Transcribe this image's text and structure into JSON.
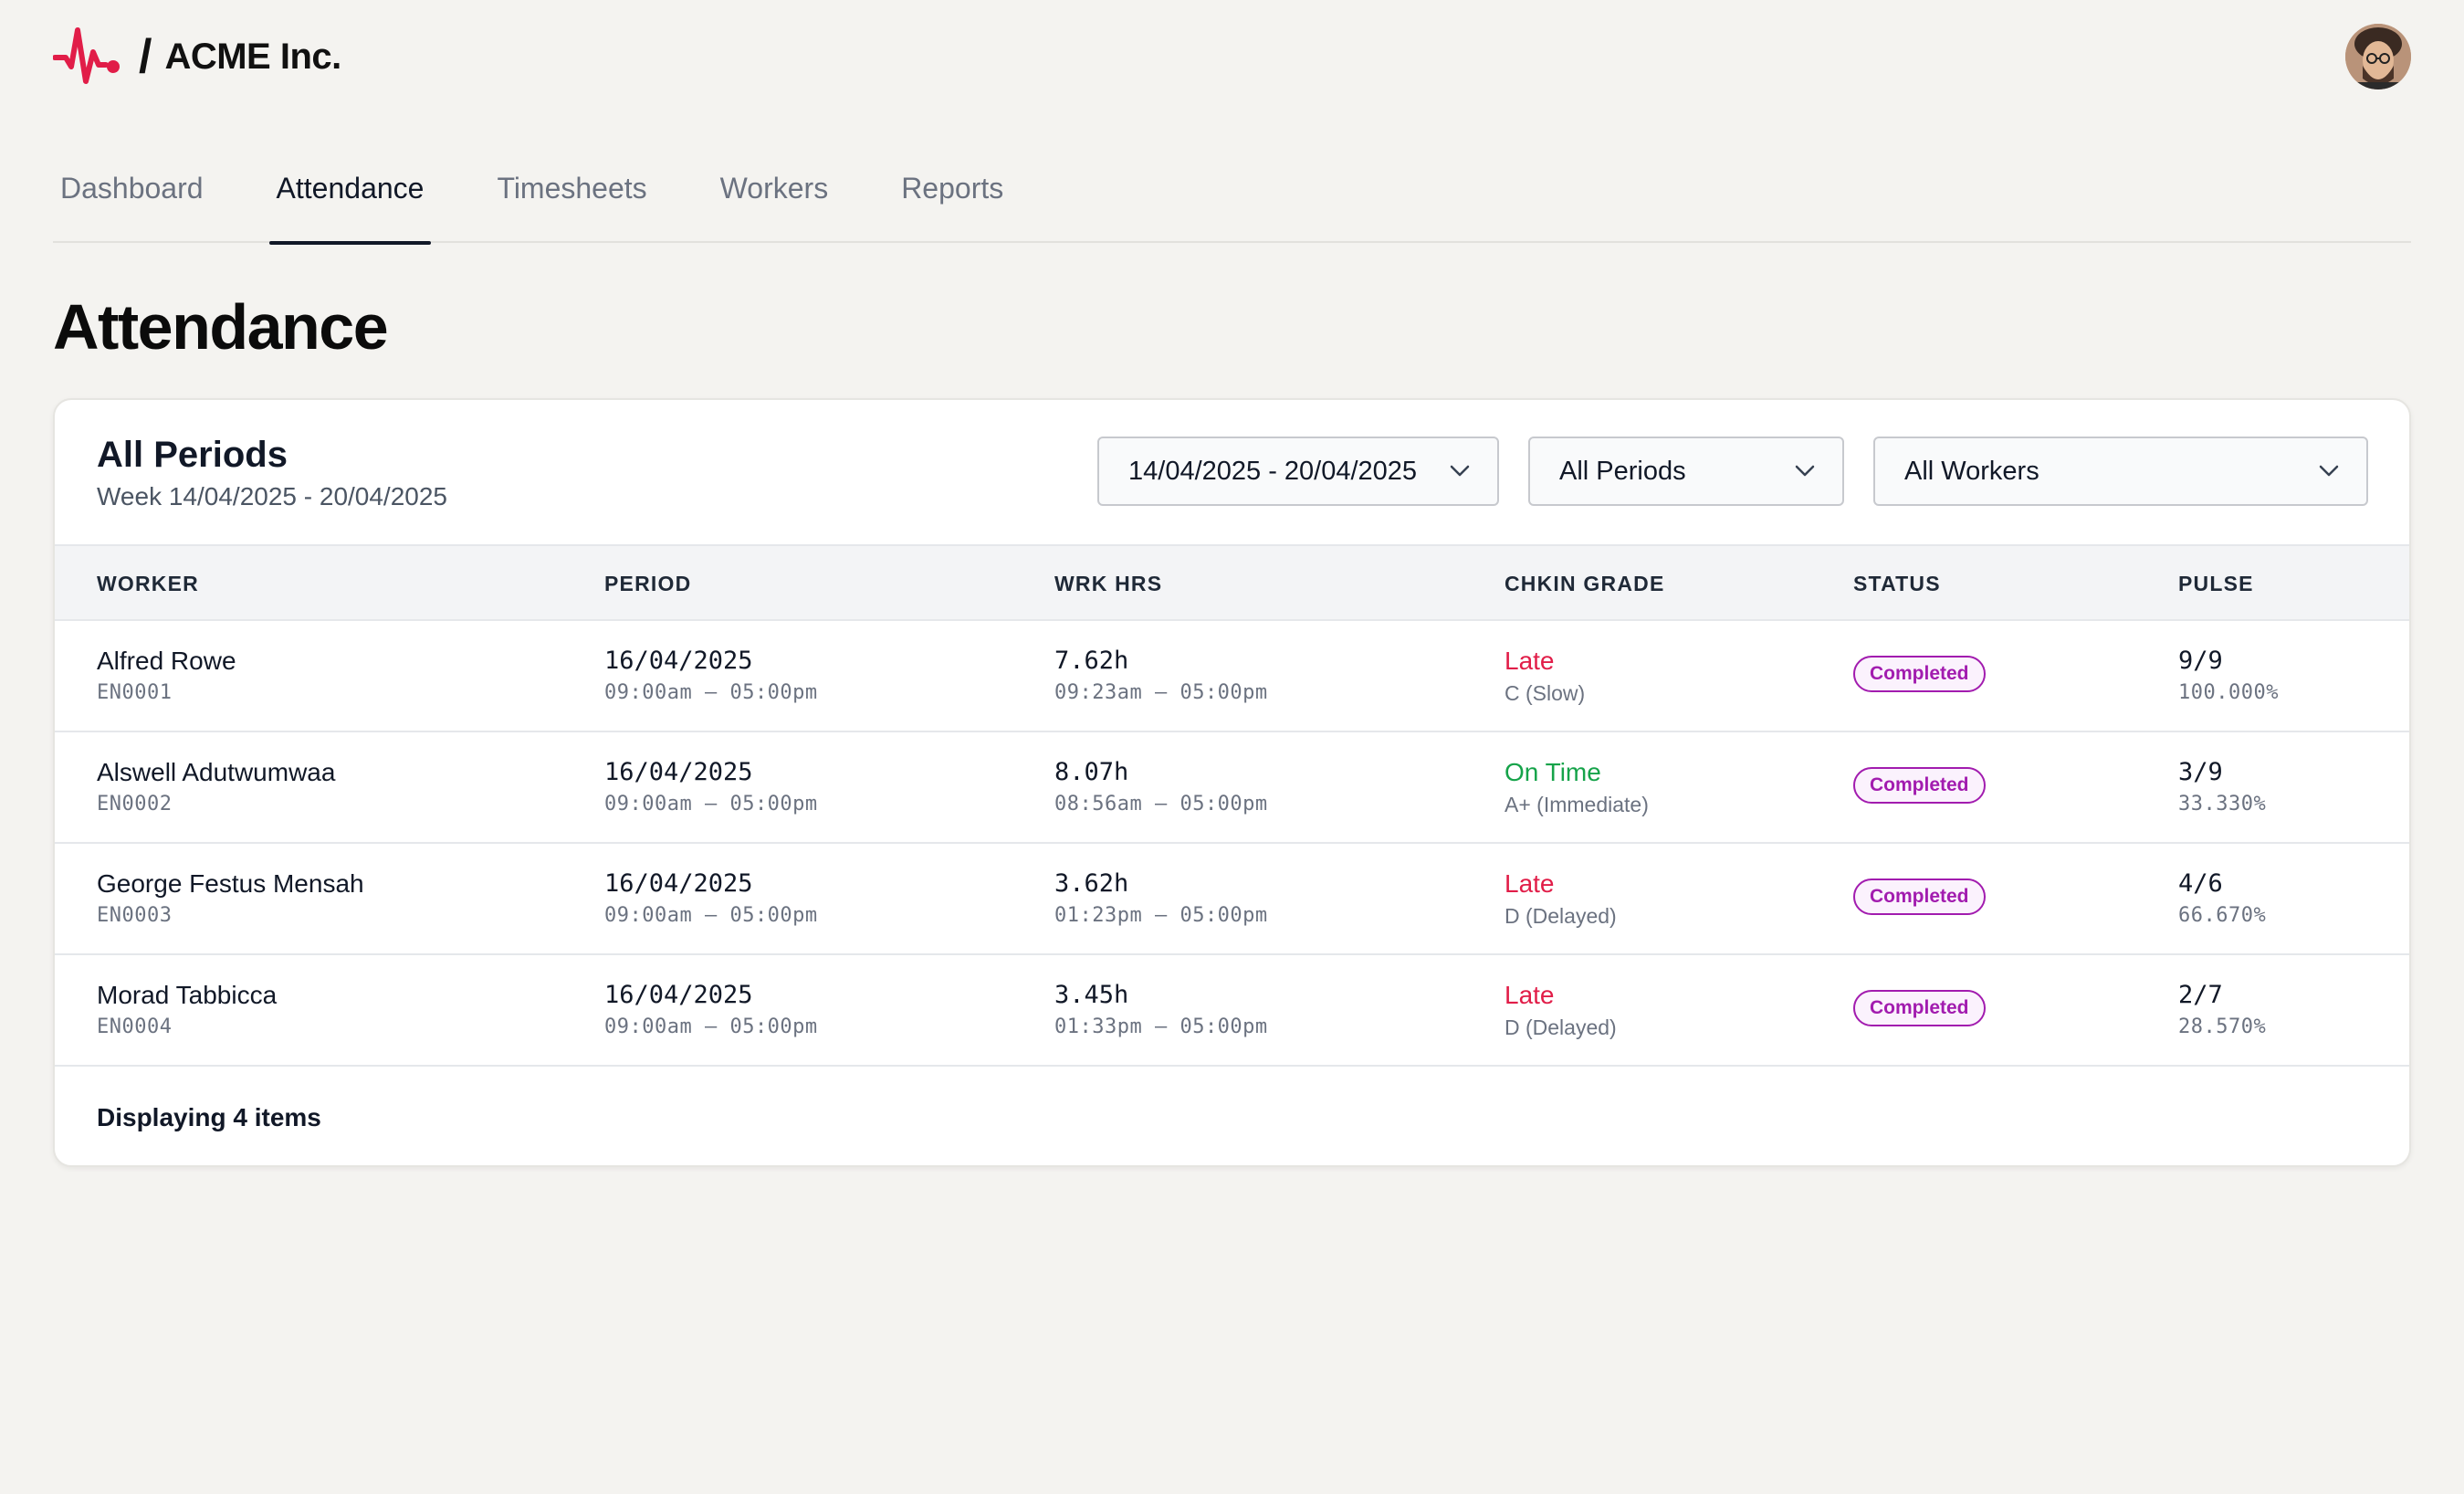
{
  "brand": {
    "name": "ACME Inc.",
    "separator": "/",
    "logo_icon": "pulse-icon",
    "accent": "#e11d48"
  },
  "user": {
    "avatar_icon": "avatar-icon"
  },
  "nav": {
    "tabs": [
      {
        "label": "Dashboard"
      },
      {
        "label": "Attendance"
      },
      {
        "label": "Timesheets"
      },
      {
        "label": "Workers"
      },
      {
        "label": "Reports"
      }
    ],
    "active": "Attendance"
  },
  "page": {
    "title": "Attendance"
  },
  "card": {
    "title": "All Periods",
    "subtitle": "Week 14/04/2025 - 20/04/2025",
    "filters": {
      "date_range": "14/04/2025 - 20/04/2025",
      "period": "All Periods",
      "workers": "All Workers"
    },
    "columns": [
      "WORKER",
      "PERIOD",
      "WRK HRS",
      "CHKIN GRADE",
      "STATUS",
      "PULSE"
    ],
    "rows": [
      {
        "worker": "Alfred Rowe",
        "id": "EN0001",
        "date": "16/04/2025",
        "period": "09:00am – 05:00pm",
        "hours": "7.62h",
        "hours_range": "09:23am – 05:00pm",
        "grade": "Late",
        "grade_detail": "C (Slow)",
        "grade_color": "#e11d48",
        "status": "Completed",
        "pulse": "9/9",
        "pulse_pct": "100.000%"
      },
      {
        "worker": "Alswell Adutwumwaa",
        "id": "EN0002",
        "date": "16/04/2025",
        "period": "09:00am – 05:00pm",
        "hours": "8.07h",
        "hours_range": "08:56am – 05:00pm",
        "grade": "On Time",
        "grade_detail": "A+ (Immediate)",
        "grade_color": "#16a34a",
        "status": "Completed",
        "pulse": "3/9",
        "pulse_pct": "33.330%"
      },
      {
        "worker": "George Festus Mensah",
        "id": "EN0003",
        "date": "16/04/2025",
        "period": "09:00am – 05:00pm",
        "hours": "3.62h",
        "hours_range": "01:23pm – 05:00pm",
        "grade": "Late",
        "grade_detail": "D (Delayed)",
        "grade_color": "#e11d48",
        "status": "Completed",
        "pulse": "4/6",
        "pulse_pct": "66.670%"
      },
      {
        "worker": "Morad Tabbicca",
        "id": "EN0004",
        "date": "16/04/2025",
        "period": "09:00am – 05:00pm",
        "hours": "3.45h",
        "hours_range": "01:33pm – 05:00pm",
        "grade": "Late",
        "grade_detail": "D (Delayed)",
        "grade_color": "#e11d48",
        "status": "Completed",
        "pulse": "2/7",
        "pulse_pct": "28.570%"
      }
    ],
    "footer": "Displaying 4 items"
  }
}
